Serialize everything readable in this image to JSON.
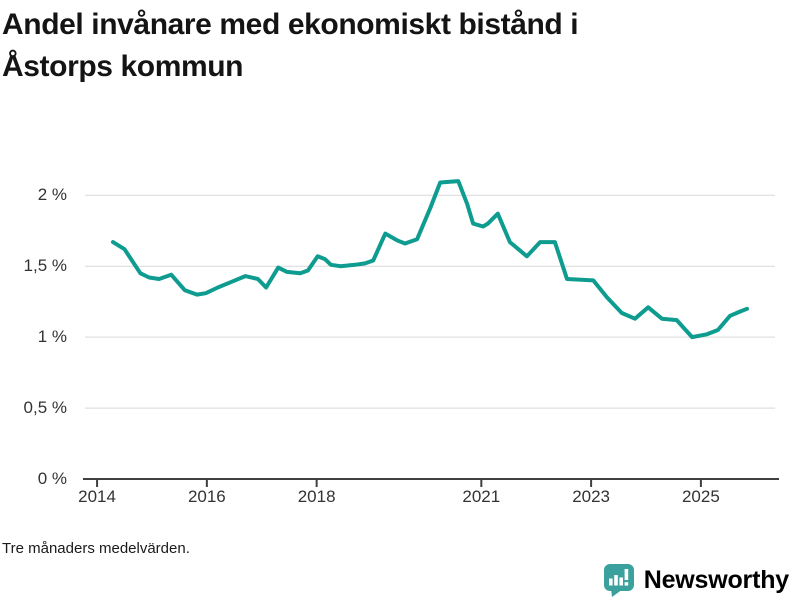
{
  "header": {
    "title_lines": [
      "Andel invånare med ekonomiskt bistånd i",
      "Åstorps kommun"
    ]
  },
  "footnote": "Tre månaders medelvärden.",
  "logo": {
    "name": "Newsworthy",
    "icon": "newsworthy-bubble-chart-icon",
    "color": "#3ba19c"
  },
  "chart_data": {
    "type": "line",
    "title": "Andel invånare med ekonomiskt bistånd i Åstorps kommun",
    "xlabel": "",
    "ylabel": "",
    "unit": "%",
    "grid": true,
    "legend": "none",
    "line_color": "#0d9c8f",
    "grid_color": "#d9d9d9",
    "axis_color": "#404040",
    "xlim": [
      2013.78,
      2026.35
    ],
    "ylim": [
      0,
      2.46
    ],
    "x_ticks": [
      {
        "x": 2014,
        "label": "2014"
      },
      {
        "x": 2016,
        "label": "2016"
      },
      {
        "x": 2018,
        "label": "2018"
      },
      {
        "x": 2021,
        "label": "2021"
      },
      {
        "x": 2023,
        "label": "2023"
      },
      {
        "x": 2025,
        "label": "2025"
      }
    ],
    "y_ticks": [
      {
        "y": 0,
        "label": "0 %"
      },
      {
        "y": 0.5,
        "label": "0,5 %"
      },
      {
        "y": 1,
        "label": "1 %"
      },
      {
        "y": 1.5,
        "label": "1,5 %"
      },
      {
        "y": 2,
        "label": "2 %"
      }
    ],
    "series": [
      {
        "name": "Andel invånare med ekonomiskt bistånd",
        "points": [
          [
            2014.29,
            1.67
          ],
          [
            2014.5,
            1.62
          ],
          [
            2014.79,
            1.45
          ],
          [
            2014.95,
            1.42
          ],
          [
            2015.13,
            1.41
          ],
          [
            2015.35,
            1.44
          ],
          [
            2015.6,
            1.33
          ],
          [
            2015.82,
            1.3
          ],
          [
            2015.98,
            1.31
          ],
          [
            2016.2,
            1.35
          ],
          [
            2016.45,
            1.39
          ],
          [
            2016.7,
            1.43
          ],
          [
            2016.93,
            1.41
          ],
          [
            2017.08,
            1.35
          ],
          [
            2017.3,
            1.49
          ],
          [
            2017.46,
            1.46
          ],
          [
            2017.7,
            1.45
          ],
          [
            2017.84,
            1.47
          ],
          [
            2018.02,
            1.57
          ],
          [
            2018.15,
            1.55
          ],
          [
            2018.26,
            1.51
          ],
          [
            2018.43,
            1.5
          ],
          [
            2018.7,
            1.51
          ],
          [
            2018.88,
            1.52
          ],
          [
            2019.03,
            1.54
          ],
          [
            2019.25,
            1.73
          ],
          [
            2019.48,
            1.68
          ],
          [
            2019.61,
            1.66
          ],
          [
            2019.83,
            1.69
          ],
          [
            2020.07,
            1.91
          ],
          [
            2020.25,
            2.09
          ],
          [
            2020.58,
            2.1
          ],
          [
            2020.74,
            1.94
          ],
          [
            2020.85,
            1.8
          ],
          [
            2021.03,
            1.78
          ],
          [
            2021.12,
            1.8
          ],
          [
            2021.3,
            1.87
          ],
          [
            2021.52,
            1.67
          ],
          [
            2021.83,
            1.57
          ],
          [
            2022.07,
            1.67
          ],
          [
            2022.34,
            1.67
          ],
          [
            2022.56,
            1.41
          ],
          [
            2023.04,
            1.4
          ],
          [
            2023.29,
            1.28
          ],
          [
            2023.56,
            1.17
          ],
          [
            2023.8,
            1.13
          ],
          [
            2024.04,
            1.21
          ],
          [
            2024.29,
            1.13
          ],
          [
            2024.56,
            1.12
          ],
          [
            2024.84,
            1.0
          ],
          [
            2025.11,
            1.02
          ],
          [
            2025.31,
            1.05
          ],
          [
            2025.53,
            1.15
          ],
          [
            2025.71,
            1.18
          ],
          [
            2025.84,
            1.2
          ]
        ]
      }
    ]
  }
}
